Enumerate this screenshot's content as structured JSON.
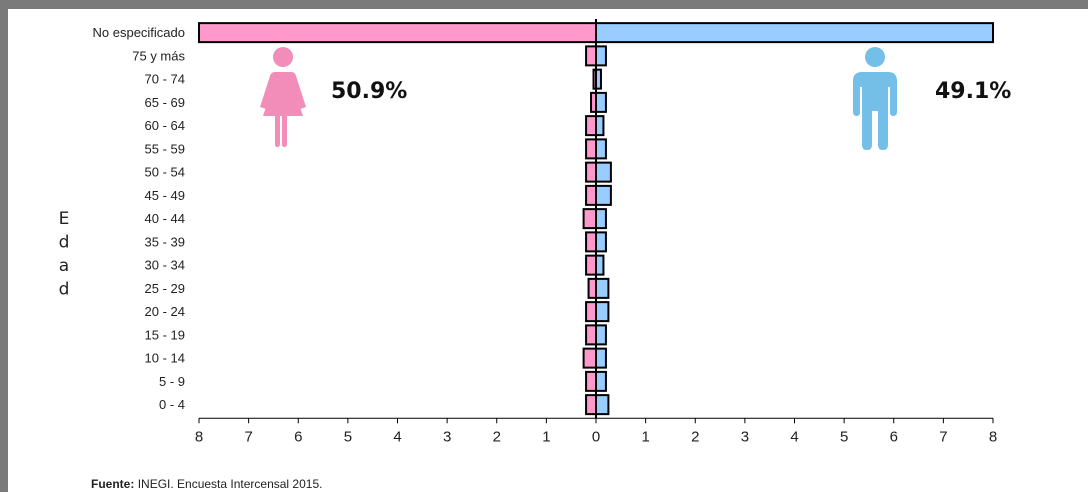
{
  "source": {
    "label": "Fuente:",
    "text": "INEGI. Encuesta Intercensal 2015."
  },
  "colors": {
    "female": "#ff99cc",
    "male": "#99ccff",
    "female_icon": "#f28cb8",
    "male_icon": "#74bfe8",
    "outline": "#000000",
    "frame": "#7a7a7a"
  },
  "icons": {
    "female": "woman-icon",
    "male": "man-icon"
  },
  "chart_data": {
    "type": "bar",
    "orientation": "horizontal",
    "subtype": "population-pyramid",
    "ylabel": "Edad",
    "xlabel": "",
    "xlim": [
      -8,
      8
    ],
    "x_tick_labels": [
      "8",
      "7",
      "6",
      "5",
      "4",
      "3",
      "2",
      "1",
      "0",
      "1",
      "2",
      "3",
      "4",
      "5",
      "6",
      "7",
      "8"
    ],
    "categories": [
      "No especificado",
      "75 y más",
      "70 - 74",
      "65 - 69",
      "60 - 64",
      "55 - 59",
      "50 - 54",
      "45 - 49",
      "40 - 44",
      "35 - 39",
      "30 - 34",
      "25 - 29",
      "20 - 24",
      "15 - 19",
      "10 - 14",
      "5 - 9",
      "0 - 4"
    ],
    "series": [
      {
        "values": [
          8.0,
          0.2,
          0.05,
          0.1,
          0.2,
          0.2,
          0.2,
          0.2,
          0.25,
          0.2,
          0.2,
          0.15,
          0.2,
          0.2,
          0.25,
          0.2,
          0.2
        ]
      },
      {
        "values": [
          8.0,
          0.2,
          0.1,
          0.2,
          0.15,
          0.2,
          0.3,
          0.3,
          0.2,
          0.2,
          0.15,
          0.25,
          0.25,
          0.2,
          0.2,
          0.2,
          0.25
        ]
      }
    ],
    "annotations": [
      {
        "text": "50.9%"
      },
      {
        "text": "49.1%"
      }
    ],
    "grid": false,
    "legend": "none"
  }
}
